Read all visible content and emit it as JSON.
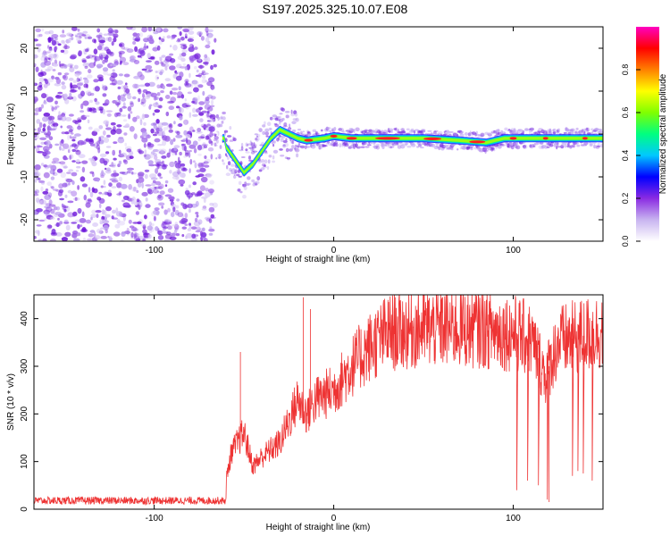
{
  "chart_data": [
    {
      "type": "heatmap",
      "title": "S197.2025.325.10.07.E08",
      "xlabel": "Height of straight line (km)",
      "ylabel": "Frequency (Hz)",
      "xlim": [
        -167,
        150
      ],
      "ylim": [
        -25,
        25
      ],
      "xticks": [
        -100,
        0,
        100
      ],
      "yticks": [
        -20,
        -10,
        0,
        10,
        20
      ],
      "colorbar": {
        "label": "Normalized spectral amplitude",
        "range": [
          0,
          1
        ],
        "ticks": [
          "0.0",
          "0.2",
          "0.4",
          "0.6",
          "0.8"
        ],
        "colors": [
          "#ffffff",
          "#c8b4f0",
          "#8a2be2",
          "#0000ff",
          "#00c8ff",
          "#00ff80",
          "#80ff00",
          "#ffff00",
          "#ff8000",
          "#ff0000",
          "#ff00c0"
        ]
      },
      "noise_region": {
        "x_start": -167,
        "x_end": -66,
        "freq_range": [
          -25,
          25
        ]
      },
      "ridge": [
        {
          "x": -60,
          "f": -3
        },
        {
          "x": -55,
          "f": -6
        },
        {
          "x": -50,
          "f": -9
        },
        {
          "x": -45,
          "f": -7
        },
        {
          "x": -40,
          "f": -4
        },
        {
          "x": -35,
          "f": -1
        },
        {
          "x": -30,
          "f": 1
        },
        {
          "x": -25,
          "f": 0
        },
        {
          "x": -20,
          "f": -1
        },
        {
          "x": -15,
          "f": -1.5
        },
        {
          "x": -5,
          "f": -1
        },
        {
          "x": 0,
          "f": -0.5
        },
        {
          "x": 10,
          "f": -1
        },
        {
          "x": 30,
          "f": -1
        },
        {
          "x": 50,
          "f": -1
        },
        {
          "x": 70,
          "f": -1.5
        },
        {
          "x": 85,
          "f": -2
        },
        {
          "x": 95,
          "f": -1
        },
        {
          "x": 110,
          "f": -1
        },
        {
          "x": 130,
          "f": -1
        },
        {
          "x": 150,
          "f": -1
        }
      ]
    },
    {
      "type": "line",
      "xlabel": "Height of straight line (km)",
      "ylabel": "SNR (10 * v/v)",
      "xlim": [
        -167,
        150
      ],
      "ylim": [
        0,
        450
      ],
      "xticks": [
        -100,
        0,
        100
      ],
      "yticks": [
        0,
        100,
        200,
        300,
        400
      ],
      "color": "#ee3333",
      "baseline_before_x": -60,
      "baseline_value": 18,
      "envelope": [
        {
          "x": -167,
          "v": 18
        },
        {
          "x": -62,
          "v": 20
        },
        {
          "x": -57,
          "v": 120
        },
        {
          "x": -50,
          "v": 160
        },
        {
          "x": -45,
          "v": 90
        },
        {
          "x": -40,
          "v": 110
        },
        {
          "x": -30,
          "v": 140
        },
        {
          "x": -20,
          "v": 230
        },
        {
          "x": -15,
          "v": 200
        },
        {
          "x": -10,
          "v": 230
        },
        {
          "x": 0,
          "v": 250
        },
        {
          "x": 10,
          "v": 300
        },
        {
          "x": 20,
          "v": 340
        },
        {
          "x": 30,
          "v": 370
        },
        {
          "x": 50,
          "v": 380
        },
        {
          "x": 80,
          "v": 380
        },
        {
          "x": 100,
          "v": 370
        },
        {
          "x": 110,
          "v": 355
        },
        {
          "x": 118,
          "v": 280
        },
        {
          "x": 125,
          "v": 350
        },
        {
          "x": 150,
          "v": 375
        }
      ],
      "spikes": [
        {
          "x": -52,
          "v": 330
        },
        {
          "x": -17,
          "v": 445
        },
        {
          "x": -13,
          "v": 420
        },
        {
          "x": 60,
          "v": 440
        },
        {
          "x": 120,
          "v": 15
        }
      ],
      "dropouts": [
        {
          "x": 102,
          "v": 40
        },
        {
          "x": 108,
          "v": 60
        },
        {
          "x": 114,
          "v": 50
        },
        {
          "x": 119,
          "v": 20
        },
        {
          "x": 133,
          "v": 70
        },
        {
          "x": 136,
          "v": 80
        },
        {
          "x": 139,
          "v": 75
        },
        {
          "x": 144,
          "v": 60
        }
      ]
    }
  ]
}
